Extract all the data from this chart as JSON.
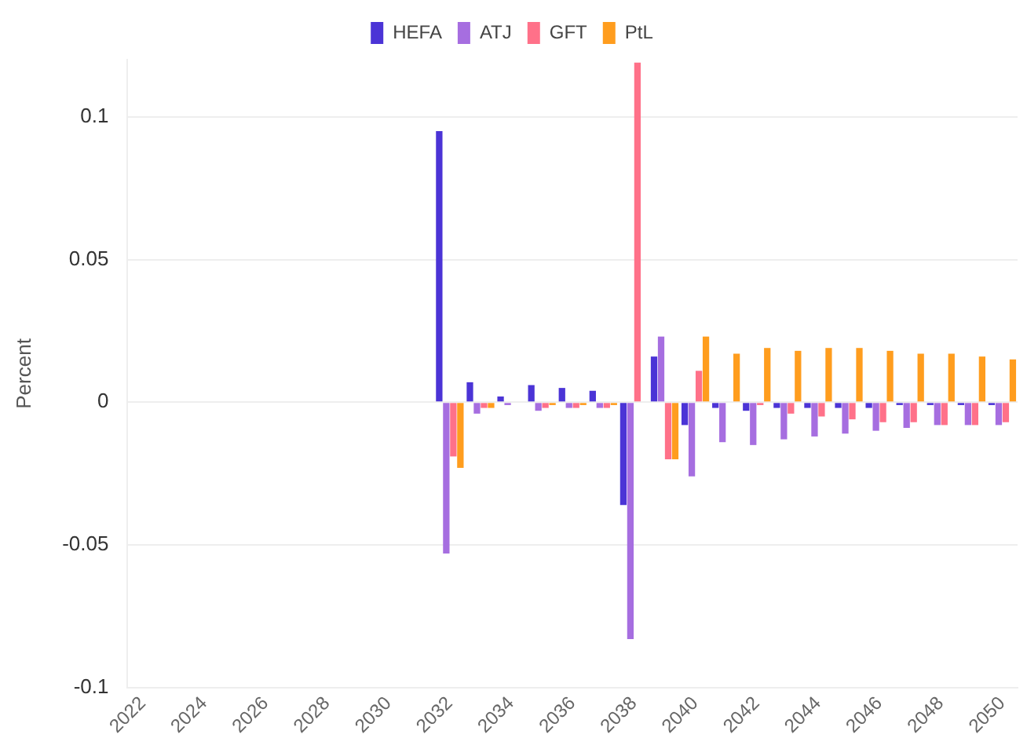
{
  "chart_data": {
    "type": "bar",
    "ylabel": "Percent",
    "categories": [
      "2022",
      null,
      "2024",
      null,
      "2026",
      null,
      "2028",
      null,
      "2030",
      null,
      "2032",
      null,
      "2034",
      null,
      "2036",
      null,
      "2038",
      null,
      "2040",
      null,
      "2042",
      null,
      "2044",
      null,
      "2046",
      null,
      "2048",
      null,
      "2050"
    ],
    "series": [
      {
        "name": "HEFA",
        "color": "#4b34d6",
        "values": [
          null,
          null,
          null,
          null,
          null,
          null,
          null,
          null,
          null,
          null,
          0.095,
          0.007,
          0.002,
          0.006,
          0.005,
          0.004,
          -0.036,
          0.016,
          -0.008,
          -0.002,
          -0.003,
          -0.002,
          -0.002,
          -0.002,
          -0.002,
          -0.001,
          -0.001,
          -0.001,
          -0.001
        ]
      },
      {
        "name": "ATJ",
        "color": "#a66ee0",
        "values": [
          null,
          null,
          null,
          null,
          null,
          null,
          null,
          null,
          null,
          null,
          -0.053,
          -0.004,
          -0.001,
          -0.003,
          -0.002,
          -0.002,
          -0.083,
          0.023,
          -0.026,
          -0.014,
          -0.015,
          -0.013,
          -0.012,
          -0.011,
          -0.01,
          -0.009,
          -0.008,
          -0.008,
          -0.008
        ]
      },
      {
        "name": "GFT",
        "color": "#ff7189",
        "values": [
          null,
          null,
          null,
          null,
          null,
          null,
          null,
          null,
          null,
          null,
          -0.019,
          -0.002,
          0,
          -0.002,
          -0.002,
          -0.002,
          0.119,
          -0.02,
          0.011,
          0,
          -0.001,
          -0.004,
          -0.005,
          -0.006,
          -0.007,
          -0.007,
          -0.008,
          -0.008,
          -0.007
        ]
      },
      {
        "name": "PtL",
        "color": "#ff9d1e",
        "values": [
          null,
          null,
          null,
          null,
          null,
          null,
          null,
          null,
          null,
          null,
          -0.023,
          -0.002,
          0,
          -0.001,
          -0.001,
          -0.001,
          0,
          -0.02,
          0.023,
          0.017,
          0.019,
          0.018,
          0.019,
          0.019,
          0.018,
          0.017,
          0.017,
          0.016,
          0.015
        ]
      }
    ],
    "ylim": [
      -0.1,
      0.12
    ],
    "yticks": [
      -0.1,
      -0.05,
      0,
      0.05,
      0.1
    ],
    "grid": "y",
    "legend": "top"
  }
}
